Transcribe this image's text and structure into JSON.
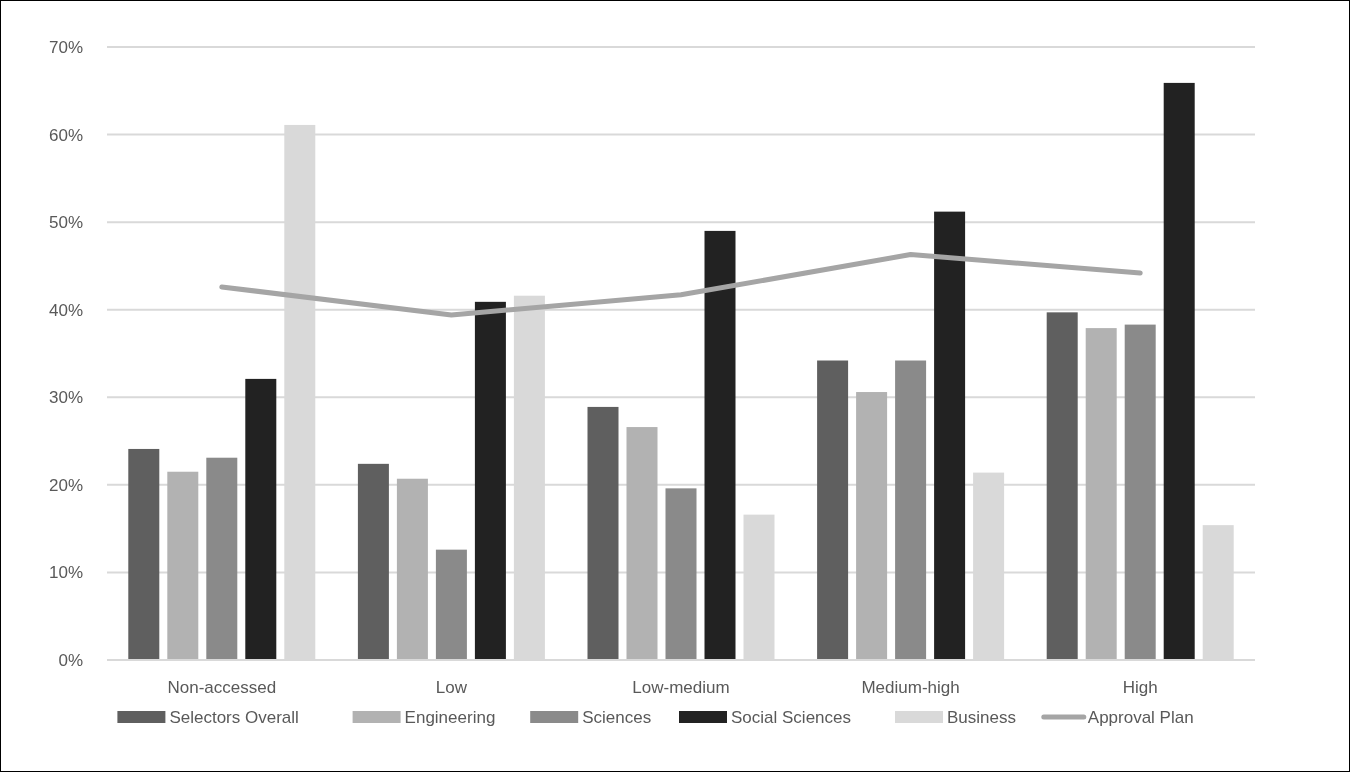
{
  "chart_data": {
    "type": "bar",
    "categories": [
      "Non-accessed",
      "Low",
      "Low-medium",
      "Medium-high",
      "High"
    ],
    "series": [
      {
        "name": "Selectors Overall",
        "color": "#5f5f5f",
        "values": [
          24.1,
          22.4,
          28.9,
          34.2,
          39.7
        ]
      },
      {
        "name": "Engineering",
        "color": "#b2b2b2",
        "values": [
          21.5,
          20.7,
          26.6,
          30.6,
          37.9
        ]
      },
      {
        "name": "Sciences",
        "color": "#8a8a8a",
        "values": [
          23.1,
          12.6,
          19.6,
          34.2,
          38.3
        ]
      },
      {
        "name": "Social Sciences",
        "color": "#222222",
        "values": [
          32.1,
          40.9,
          49.0,
          51.2,
          65.9
        ]
      },
      {
        "name": "Business",
        "color": "#d9d9d9",
        "values": [
          61.1,
          41.6,
          16.6,
          21.4,
          15.4
        ]
      },
      {
        "name": "Approval Plan",
        "type": "line",
        "color": "#a5a5a5",
        "values": [
          42.6,
          39.4,
          41.7,
          46.3,
          44.2
        ]
      }
    ],
    "ylim": [
      0,
      70
    ],
    "yticks": [
      {
        "value": 0,
        "label": "0%"
      },
      {
        "value": 10,
        "label": "10%"
      },
      {
        "value": 20,
        "label": "20%"
      },
      {
        "value": 30,
        "label": "30%"
      },
      {
        "value": 40,
        "label": "40%"
      },
      {
        "value": 50,
        "label": "50%"
      },
      {
        "value": 60,
        "label": "60%"
      },
      {
        "value": 70,
        "label": "70%"
      }
    ],
    "grid": "y",
    "legend": "bottom",
    "marker": "none"
  }
}
